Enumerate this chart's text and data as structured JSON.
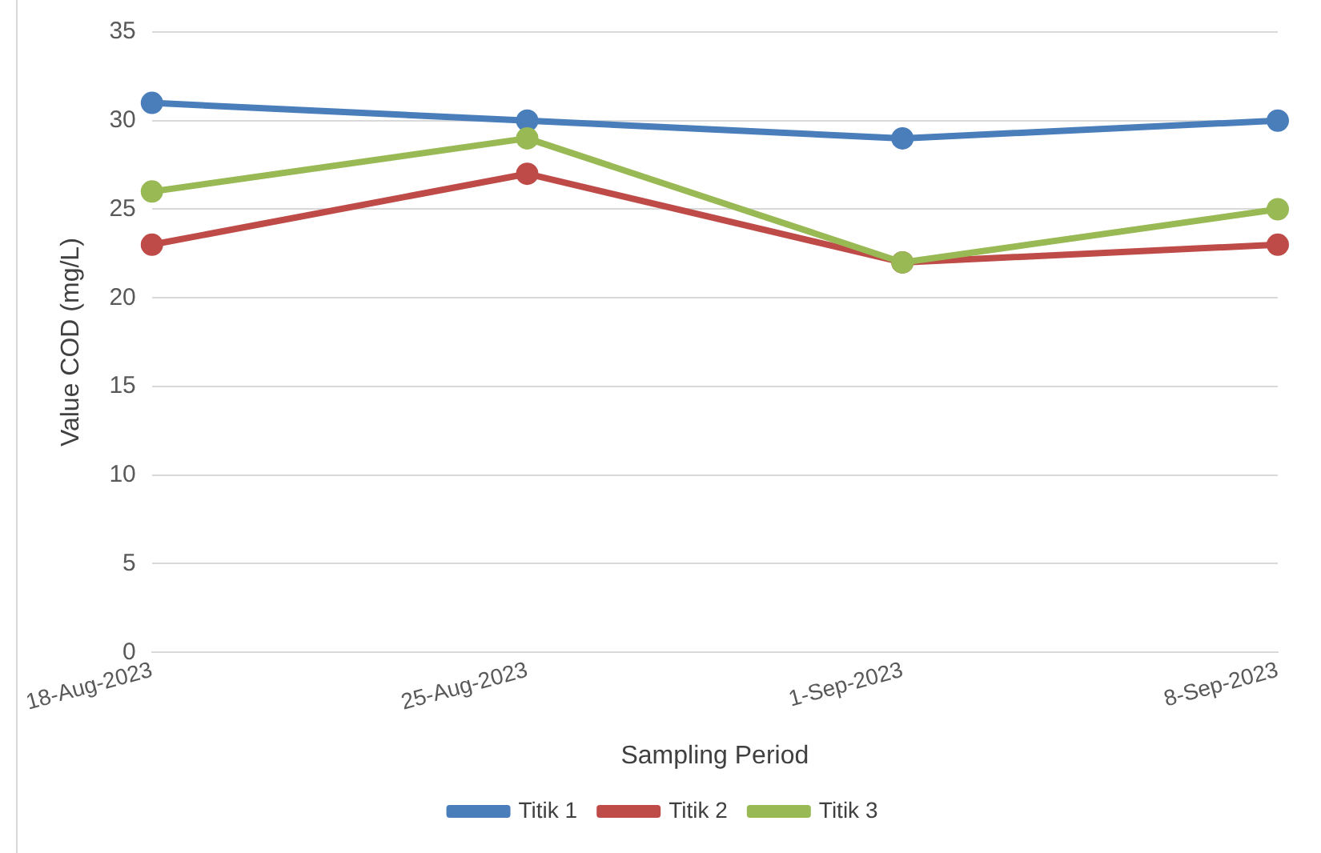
{
  "chart_data": {
    "type": "line",
    "xlabel": "Sampling Period",
    "ylabel": "Value COD (mg/L)",
    "categories": [
      "18-Aug-2023",
      "25-Aug-2023",
      "1-Sep-2023",
      "8-Sep-2023"
    ],
    "series": [
      {
        "name": "Titik 1",
        "color": "#4a7ebb",
        "values": [
          31,
          30,
          29,
          30
        ]
      },
      {
        "name": "Titik 2",
        "color": "#be4b48",
        "values": [
          23,
          27,
          22,
          23
        ]
      },
      {
        "name": "Titik 3",
        "color": "#98b954",
        "values": [
          26,
          29,
          22,
          25
        ]
      }
    ],
    "ylim": [
      0,
      35
    ],
    "yticks": [
      0,
      5,
      10,
      15,
      20,
      25,
      30,
      35
    ],
    "grid": "y",
    "legend": "bottom",
    "marker": "circle",
    "line_style": "solid"
  }
}
